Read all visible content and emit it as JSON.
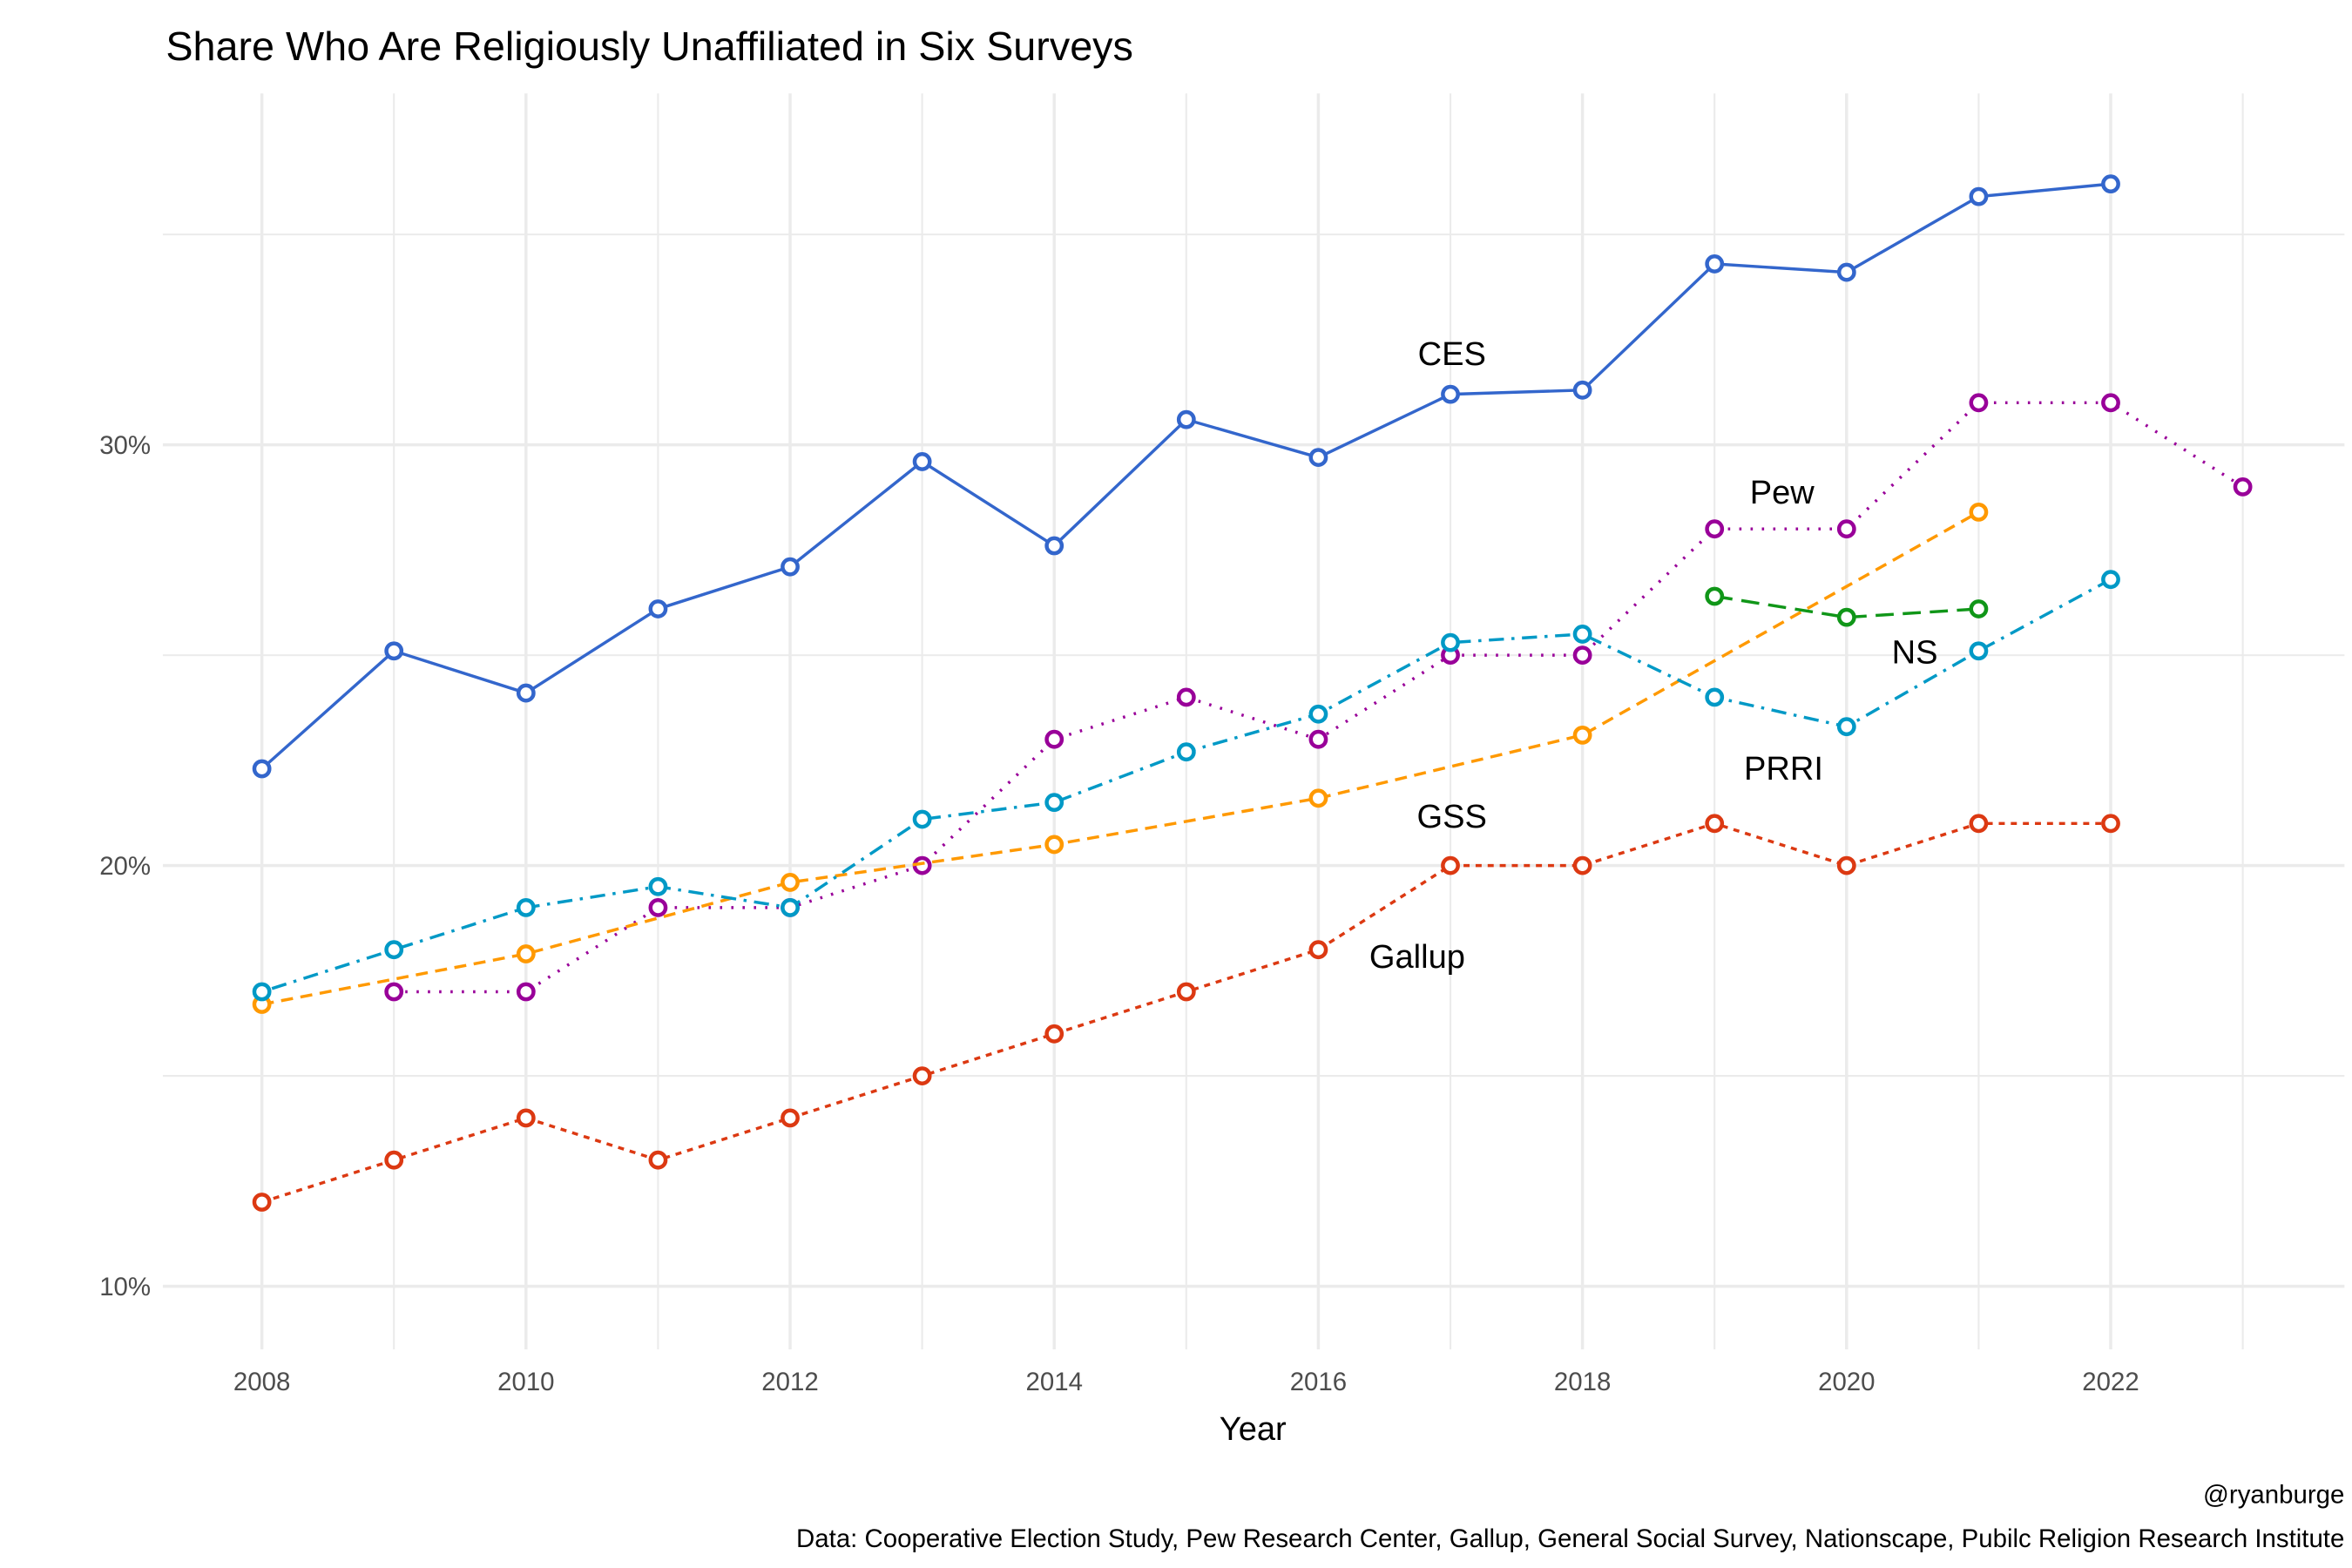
{
  "chart_data": {
    "type": "line",
    "title": "Share Who Are Religiously Unaffiliated in Six Surveys",
    "xlabel": "Year",
    "ylabel": "",
    "xlim": [
      2007.25,
      2023.77
    ],
    "ylim": [
      8.5,
      38.35
    ],
    "x_ticks": [
      "2008",
      "2010",
      "2012",
      "2014",
      "2016",
      "2018",
      "2020",
      "2022"
    ],
    "y_ticks": [
      "10%",
      "20%",
      "30%"
    ],
    "grid": true,
    "legend": "none (direct labels)",
    "caption_handle": "@ryanburge",
    "caption_source": "Data: Cooperative Election Study, Pew Research Center, Gallup, General Social Survey, Nationscape, Pubilc Religion Research Institute",
    "series": [
      {
        "name": "CES",
        "color": "#3366cc",
        "style": "solid",
        "x": [
          2008,
          2009,
          2010,
          2011,
          2012,
          2013,
          2014,
          2015,
          2016,
          2017,
          2018,
          2019,
          2020,
          2021,
          2022
        ],
        "y": [
          22.3,
          25.1,
          24.1,
          26.1,
          27.1,
          29.6,
          27.6,
          30.6,
          29.7,
          31.2,
          31.3,
          34.3,
          34.1,
          35.9,
          36.2
        ]
      },
      {
        "name": "Pew",
        "color": "#990099",
        "style": "dotted",
        "x": [
          2009,
          2010,
          2011,
          2012,
          2013,
          2014,
          2015,
          2016,
          2017,
          2018,
          2019,
          2020,
          2021,
          2022,
          2023
        ],
        "y": [
          17,
          17,
          19,
          19,
          20,
          23,
          24,
          23,
          25,
          25,
          28,
          28,
          31,
          31,
          29
        ]
      },
      {
        "name": "GSS",
        "color": "#ff9900",
        "style": "dashed",
        "x": [
          2008,
          2010,
          2012,
          2014,
          2016,
          2018,
          2021
        ],
        "y": [
          16.7,
          17.9,
          19.6,
          20.5,
          21.6,
          23.1,
          28.4
        ]
      },
      {
        "name": "PRRI",
        "color": "#0099c6",
        "style": "dotdash",
        "x": [
          2008,
          2009,
          2010,
          2011,
          2012,
          2013,
          2014,
          2015,
          2016,
          2017,
          2018,
          2019,
          2020,
          2021,
          2022
        ],
        "y": [
          17.0,
          18.0,
          19.0,
          19.5,
          19.0,
          21.1,
          21.5,
          22.7,
          23.6,
          25.3,
          25.5,
          24.0,
          23.3,
          25.1,
          26.8
        ]
      },
      {
        "name": "NS",
        "color": "#109618",
        "style": "longdash",
        "x": [
          2019,
          2020,
          2021
        ],
        "y": [
          26.4,
          25.9,
          26.1
        ]
      },
      {
        "name": "Gallup",
        "color": "#dc3912",
        "style": "shortdash",
        "x": [
          2008,
          2009,
          2010,
          2011,
          2012,
          2013,
          2014,
          2015,
          2016,
          2017,
          2018,
          2019,
          2020,
          2021,
          2022
        ],
        "y": [
          12,
          13,
          14,
          13,
          14,
          15,
          16,
          17,
          18,
          20,
          20,
          21,
          20,
          21,
          21
        ]
      }
    ]
  }
}
